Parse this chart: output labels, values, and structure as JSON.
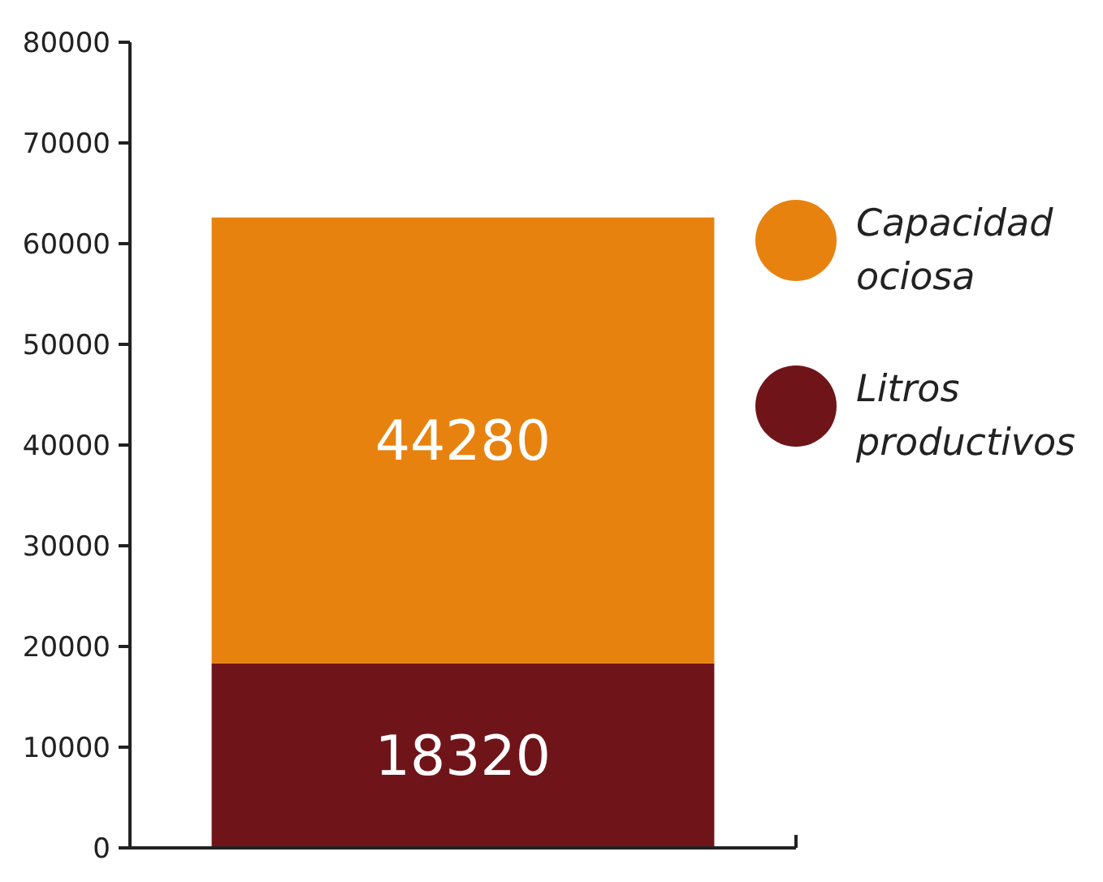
{
  "chart_data": {
    "type": "bar",
    "stacked": true,
    "categories": [
      null
    ],
    "series": [
      {
        "name": "Litros productivos",
        "color": "#6f1519",
        "values": [
          18320
        ]
      },
      {
        "name": "Capacidad ociosa",
        "color": "#e8820f",
        "values": [
          44280
        ]
      }
    ],
    "ylim": [
      0,
      80000
    ],
    "yticks": [
      0,
      10000,
      20000,
      30000,
      40000,
      50000,
      60000,
      70000,
      80000
    ],
    "data_labels": true,
    "legend": "right",
    "grid": false
  }
}
